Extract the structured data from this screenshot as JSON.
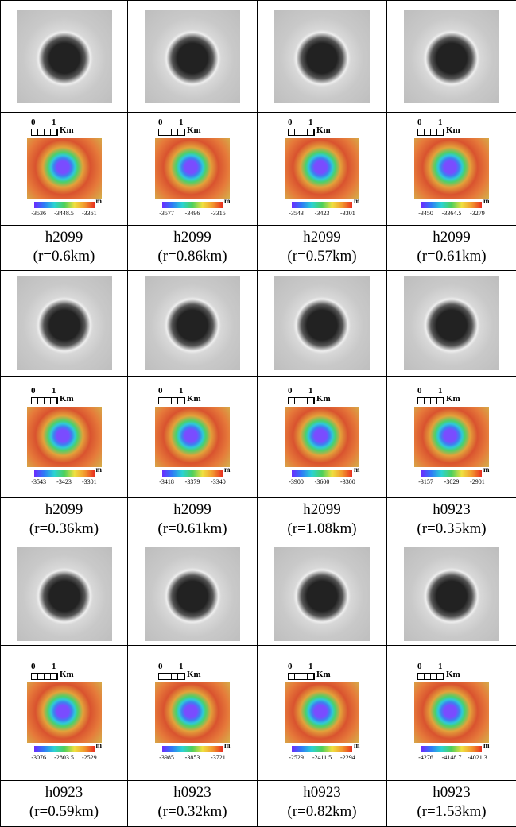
{
  "groups": [
    {
      "cells": [
        {
          "scale": [
            "0",
            "1",
            "Km"
          ],
          "unit": "m",
          "colorbar": [
            "-3536",
            "-3448.5",
            "-3361"
          ],
          "id": "h2099",
          "radius": "(r=0.6km)"
        },
        {
          "scale": [
            "0",
            "1",
            "Km"
          ],
          "unit": "m",
          "colorbar": [
            "-3577",
            "-3496",
            "-3315"
          ],
          "id": "h2099",
          "radius": "(r=0.86km)"
        },
        {
          "scale": [
            "0",
            "1",
            "Km"
          ],
          "unit": "m",
          "colorbar": [
            "-3543",
            "-3423",
            "-3301"
          ],
          "id": "h2099",
          "radius": "(r=0.57km)"
        },
        {
          "scale": [
            "0",
            "1",
            "Km"
          ],
          "unit": "m",
          "colorbar": [
            "-3450",
            "-3364.5",
            "-3279"
          ],
          "id": "h2099",
          "radius": "(r=0.61km)"
        }
      ]
    },
    {
      "cells": [
        {
          "scale": [
            "0",
            "1",
            "Km"
          ],
          "unit": "m",
          "colorbar": [
            "-3543",
            "-3423",
            "-3301"
          ],
          "id": "h2099",
          "radius": "(r=0.36km)"
        },
        {
          "scale": [
            "0",
            "1",
            "Km"
          ],
          "unit": "m",
          "colorbar": [
            "-3418",
            "-3379",
            "-3340"
          ],
          "id": "h2099",
          "radius": "(r=0.61km)"
        },
        {
          "scale": [
            "0",
            "1",
            "Km"
          ],
          "unit": "m",
          "colorbar": [
            "-3900",
            "-3600",
            "-3300"
          ],
          "id": "h2099",
          "radius": "(r=1.08km)"
        },
        {
          "scale": [
            "0",
            "1",
            "Km"
          ],
          "unit": "m",
          "colorbar": [
            "-3157",
            "-3029",
            "-2901"
          ],
          "id": "h0923",
          "radius": "(r=0.35km)"
        }
      ]
    },
    {
      "cells": [
        {
          "scale": [
            "0",
            "1",
            "Km"
          ],
          "unit": "m",
          "colorbar": [
            "-3076",
            "-2803.5",
            "-2529"
          ],
          "id": "h0923",
          "radius": "(r=0.59km)"
        },
        {
          "scale": [
            "0",
            "1",
            "Km"
          ],
          "unit": "m",
          "colorbar": [
            "-3985",
            "-3853",
            "-3721"
          ],
          "id": "h0923",
          "radius": "(r=0.32km)"
        },
        {
          "scale": [
            "0",
            "1",
            "Km"
          ],
          "unit": "m",
          "colorbar": [
            "-2529",
            "-2411.5",
            "-2294"
          ],
          "id": "h0923",
          "radius": "(r=0.82km)"
        },
        {
          "scale": [
            "0",
            "1",
            "Km"
          ],
          "unit": "m",
          "colorbar": [
            "-4276",
            "-4148.7",
            "-4021.3"
          ],
          "id": "h0923",
          "radius": "(r=1.53km)"
        }
      ]
    }
  ]
}
